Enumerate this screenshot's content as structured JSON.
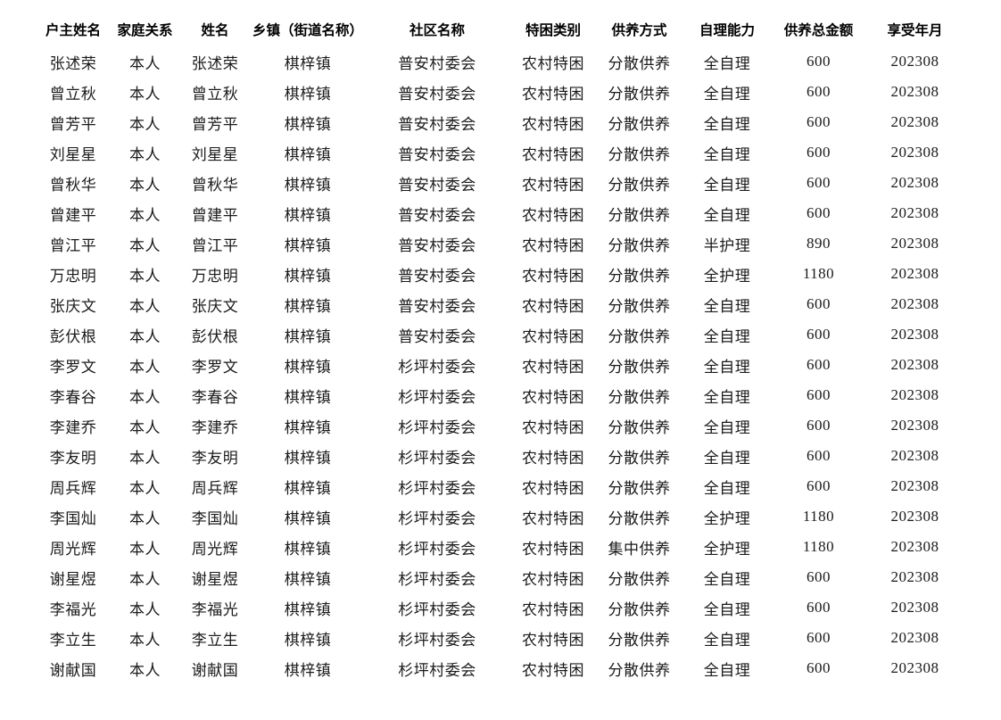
{
  "page": {
    "background_color": "#ffffff",
    "text_color": "#000000"
  },
  "table": {
    "header_keys": [
      "householder-name",
      "family-relation",
      "name",
      "township-street-name",
      "community-name",
      "poverty-category",
      "support-method",
      "self-care-ability",
      "total-support-amount",
      "benefit-year-month"
    ],
    "headers": [
      "户主姓名",
      "家庭关系",
      "姓名",
      "乡镇（街道名称）",
      "社区名称",
      "特困类别",
      "供养方式",
      "自理能力",
      "供养总金额",
      "享受年月"
    ],
    "rows": [
      [
        "张述荣",
        "本人",
        "张述荣",
        "棋梓镇",
        "普安村委会",
        "农村特困",
        "分散供养",
        "全自理",
        "600",
        "202308"
      ],
      [
        "曾立秋",
        "本人",
        "曾立秋",
        "棋梓镇",
        "普安村委会",
        "农村特困",
        "分散供养",
        "全自理",
        "600",
        "202308"
      ],
      [
        "曾芳平",
        "本人",
        "曾芳平",
        "棋梓镇",
        "普安村委会",
        "农村特困",
        "分散供养",
        "全自理",
        "600",
        "202308"
      ],
      [
        "刘星星",
        "本人",
        "刘星星",
        "棋梓镇",
        "普安村委会",
        "农村特困",
        "分散供养",
        "全自理",
        "600",
        "202308"
      ],
      [
        "曾秋华",
        "本人",
        "曾秋华",
        "棋梓镇",
        "普安村委会",
        "农村特困",
        "分散供养",
        "全自理",
        "600",
        "202308"
      ],
      [
        "曾建平",
        "本人",
        "曾建平",
        "棋梓镇",
        "普安村委会",
        "农村特困",
        "分散供养",
        "全自理",
        "600",
        "202308"
      ],
      [
        "曾江平",
        "本人",
        "曾江平",
        "棋梓镇",
        "普安村委会",
        "农村特困",
        "分散供养",
        "半护理",
        "890",
        "202308"
      ],
      [
        "万忠明",
        "本人",
        "万忠明",
        "棋梓镇",
        "普安村委会",
        "农村特困",
        "分散供养",
        "全护理",
        "1180",
        "202308"
      ],
      [
        "张庆文",
        "本人",
        "张庆文",
        "棋梓镇",
        "普安村委会",
        "农村特困",
        "分散供养",
        "全自理",
        "600",
        "202308"
      ],
      [
        "彭伏根",
        "本人",
        "彭伏根",
        "棋梓镇",
        "普安村委会",
        "农村特困",
        "分散供养",
        "全自理",
        "600",
        "202308"
      ],
      [
        "李罗文",
        "本人",
        "李罗文",
        "棋梓镇",
        "杉坪村委会",
        "农村特困",
        "分散供养",
        "全自理",
        "600",
        "202308"
      ],
      [
        "李春谷",
        "本人",
        "李春谷",
        "棋梓镇",
        "杉坪村委会",
        "农村特困",
        "分散供养",
        "全自理",
        "600",
        "202308"
      ],
      [
        "李建乔",
        "本人",
        "李建乔",
        "棋梓镇",
        "杉坪村委会",
        "农村特困",
        "分散供养",
        "全自理",
        "600",
        "202308"
      ],
      [
        "李友明",
        "本人",
        "李友明",
        "棋梓镇",
        "杉坪村委会",
        "农村特困",
        "分散供养",
        "全自理",
        "600",
        "202308"
      ],
      [
        "周兵辉",
        "本人",
        "周兵辉",
        "棋梓镇",
        "杉坪村委会",
        "农村特困",
        "分散供养",
        "全自理",
        "600",
        "202308"
      ],
      [
        "李国灿",
        "本人",
        "李国灿",
        "棋梓镇",
        "杉坪村委会",
        "农村特困",
        "分散供养",
        "全护理",
        "1180",
        "202308"
      ],
      [
        "周光辉",
        "本人",
        "周光辉",
        "棋梓镇",
        "杉坪村委会",
        "农村特困",
        "集中供养",
        "全护理",
        "1180",
        "202308"
      ],
      [
        "谢星煜",
        "本人",
        "谢星煜",
        "棋梓镇",
        "杉坪村委会",
        "农村特困",
        "分散供养",
        "全自理",
        "600",
        "202308"
      ],
      [
        "李福光",
        "本人",
        "李福光",
        "棋梓镇",
        "杉坪村委会",
        "农村特困",
        "分散供养",
        "全自理",
        "600",
        "202308"
      ],
      [
        "李立生",
        "本人",
        "李立生",
        "棋梓镇",
        "杉坪村委会",
        "农村特困",
        "分散供养",
        "全自理",
        "600",
        "202308"
      ],
      [
        "谢献国",
        "本人",
        "谢献国",
        "棋梓镇",
        "杉坪村委会",
        "农村特困",
        "分散供养",
        "全自理",
        "600",
        "202308"
      ]
    ]
  }
}
